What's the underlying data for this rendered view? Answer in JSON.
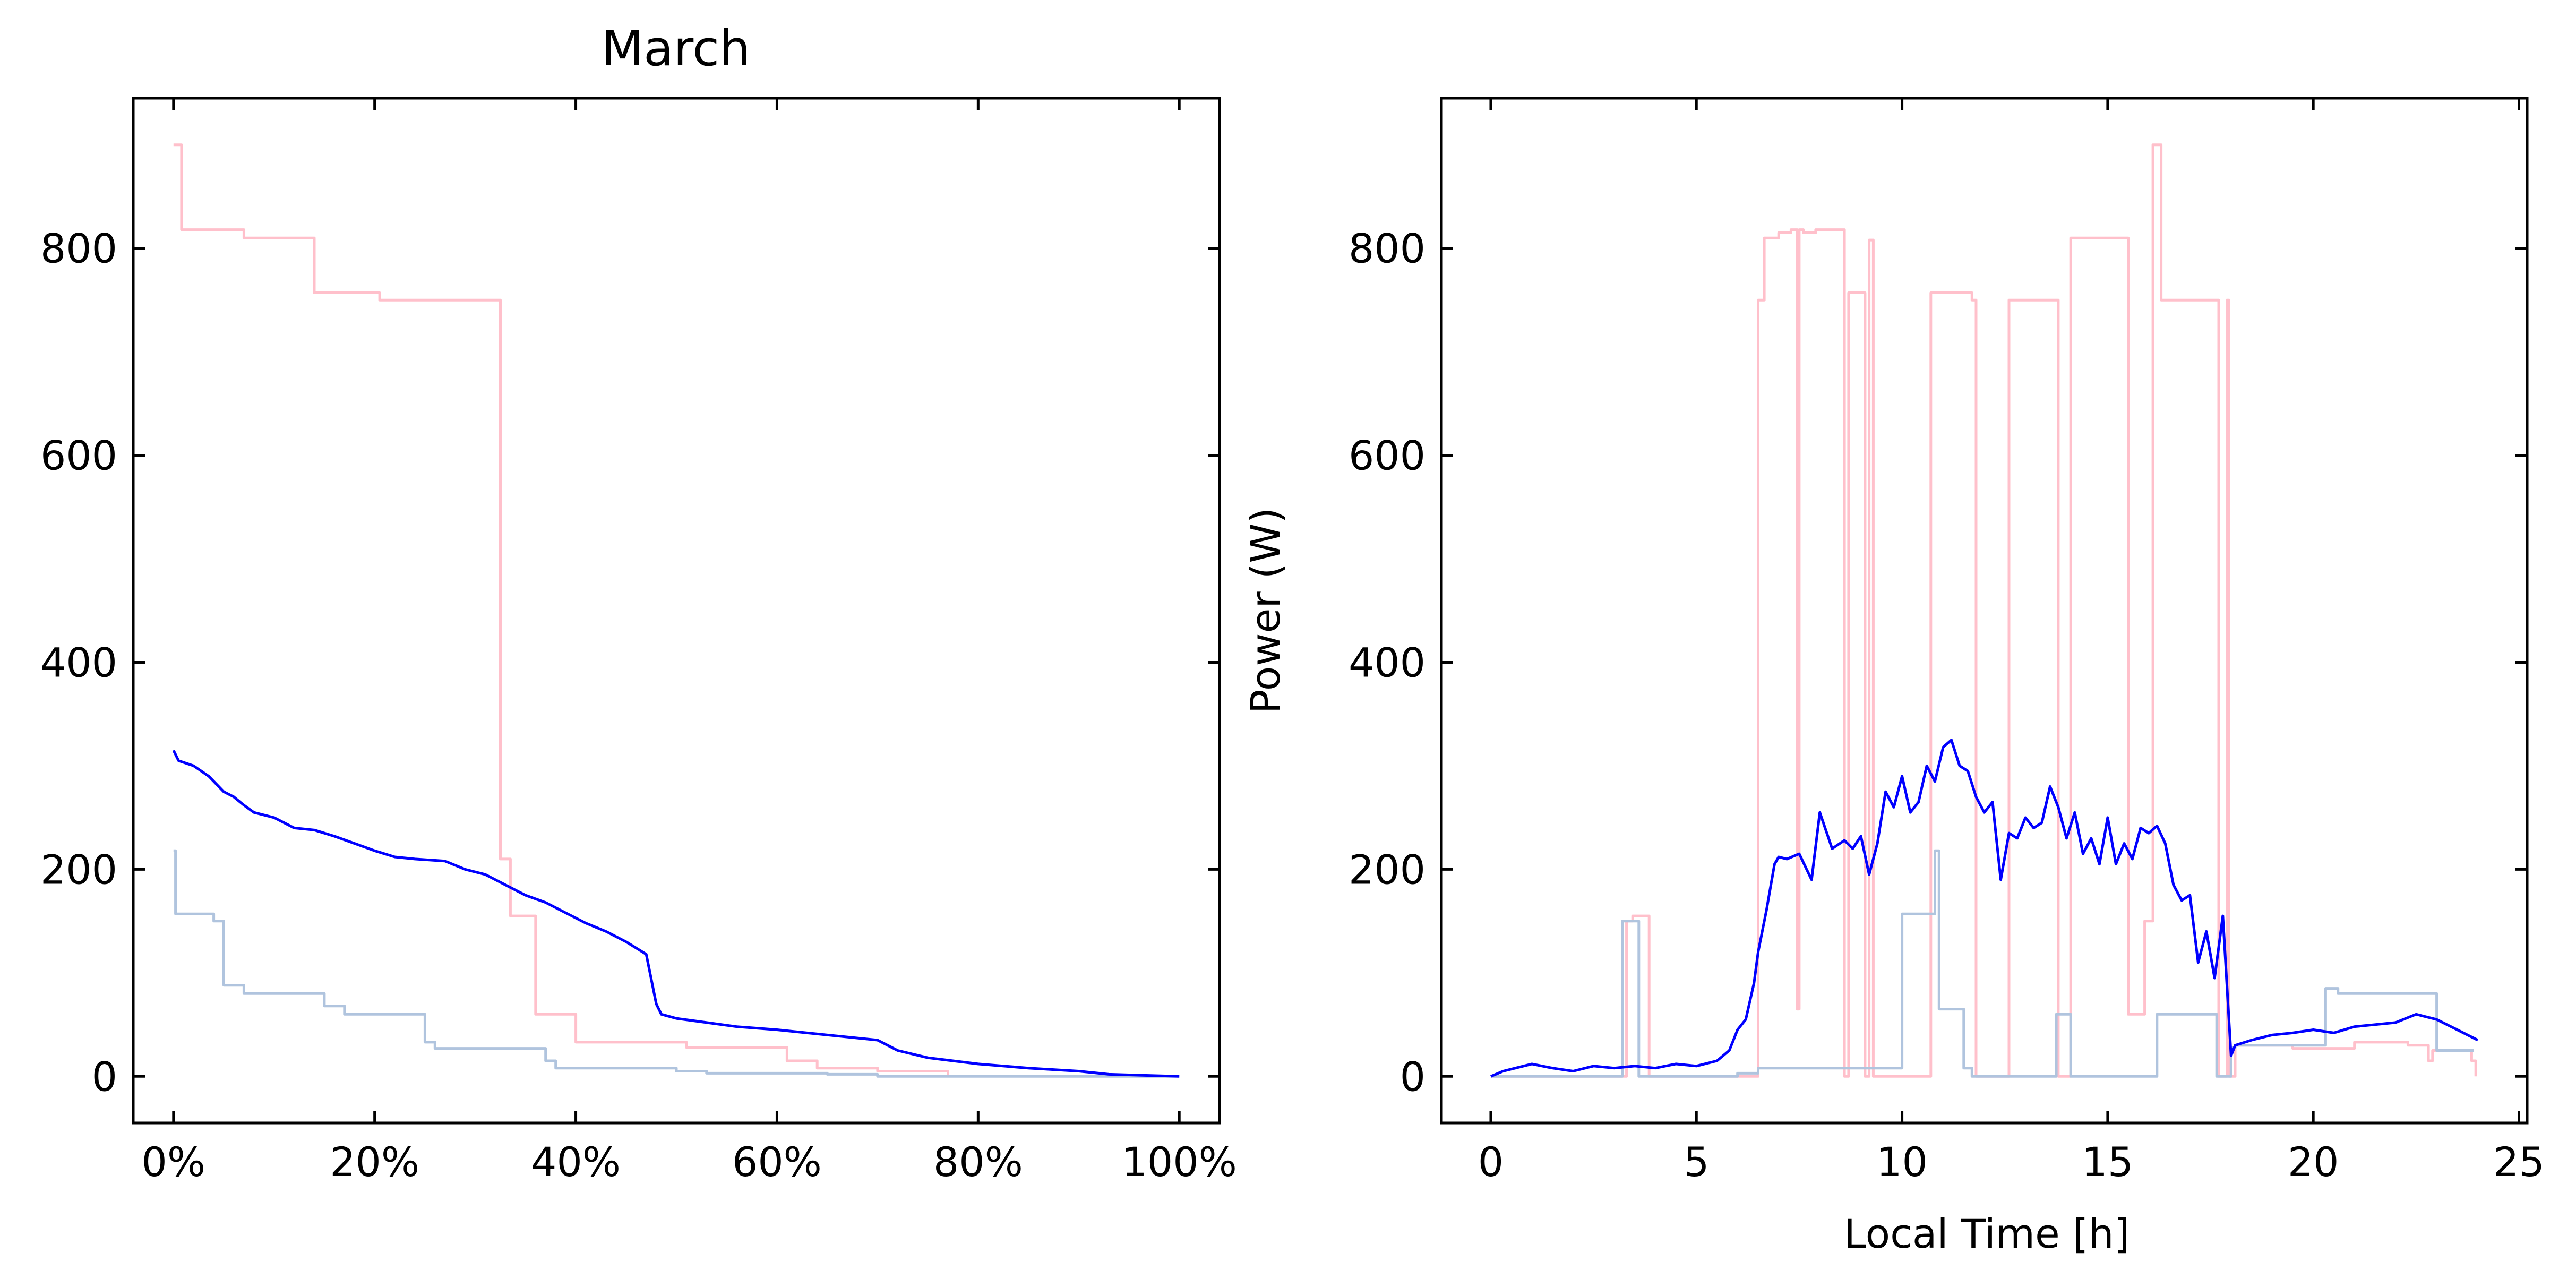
{
  "chart_data": [
    {
      "type": "line",
      "title": "March",
      "xlabel": "",
      "ylabel": "",
      "xlim": [
        -0.04,
        1.04
      ],
      "ylim": [
        -45,
        945
      ],
      "xticks": [
        0,
        0.2,
        0.4,
        0.6,
        0.8,
        1.0
      ],
      "xtick_labels": [
        "0%",
        "20%",
        "40%",
        "60%",
        "80%",
        "100%"
      ],
      "yticks": [
        0,
        200,
        400,
        600,
        800
      ],
      "ytick_labels": [
        "0",
        "200",
        "400",
        "600",
        "800"
      ],
      "grid": false,
      "series": [
        {
          "color": "#ffc0cb",
          "step": true,
          "x": [
            0,
            0.003,
            0.008,
            0.07,
            0.14,
            0.205,
            0.325,
            0.335,
            0.36,
            0.4,
            0.51,
            0.61,
            0.64,
            0.7,
            0.77
          ],
          "y": [
            900,
            900,
            818,
            810,
            757,
            750,
            210,
            155,
            60,
            33,
            28,
            15,
            8,
            5,
            0
          ]
        },
        {
          "color": "#b0c4de",
          "step": true,
          "x": [
            0,
            0.002,
            0.04,
            0.05,
            0.07,
            0.15,
            0.17,
            0.25,
            0.26,
            0.37,
            0.38,
            0.5,
            0.53,
            0.65,
            0.7,
            1.0
          ],
          "y": [
            218,
            157,
            150,
            88,
            80,
            68,
            60,
            33,
            27,
            15,
            8,
            5,
            3,
            2,
            0,
            0
          ]
        },
        {
          "color": "#0000ff",
          "step": false,
          "x": [
            0,
            0.005,
            0.02,
            0.035,
            0.05,
            0.06,
            0.07,
            0.08,
            0.1,
            0.12,
            0.14,
            0.16,
            0.18,
            0.2,
            0.22,
            0.24,
            0.27,
            0.29,
            0.31,
            0.33,
            0.35,
            0.37,
            0.39,
            0.41,
            0.43,
            0.45,
            0.47,
            0.48,
            0.485,
            0.5,
            0.53,
            0.56,
            0.6,
            0.65,
            0.7,
            0.72,
            0.75,
            0.8,
            0.85,
            0.9,
            0.93,
            1.0
          ],
          "y": [
            315,
            305,
            300,
            290,
            275,
            270,
            262,
            255,
            250,
            240,
            238,
            232,
            225,
            218,
            212,
            210,
            208,
            200,
            195,
            185,
            175,
            168,
            158,
            148,
            140,
            130,
            118,
            70,
            60,
            56,
            52,
            48,
            45,
            40,
            35,
            25,
            18,
            12,
            8,
            5,
            2,
            0
          ]
        }
      ]
    },
    {
      "type": "line",
      "title": "",
      "xlabel": "Local Time [h]",
      "ylabel": "Power (W)",
      "xlim": [
        -1.2,
        25.2
      ],
      "ylim": [
        -45,
        945
      ],
      "xticks": [
        0,
        5,
        10,
        15,
        20,
        25
      ],
      "xtick_labels": [
        "0",
        "5",
        "10",
        "15",
        "20",
        "25"
      ],
      "yticks": [
        0,
        200,
        400,
        600,
        800
      ],
      "ytick_labels": [
        "0",
        "200",
        "400",
        "600",
        "800"
      ],
      "grid": false,
      "series": [
        {
          "color": "#ffc0cb",
          "step": true,
          "x": [
            0,
            3.2,
            3.3,
            3.45,
            3.85,
            4.5,
            5.5,
            6.3,
            6.5,
            6.65,
            7.0,
            7.3,
            7.45,
            7.5,
            7.6,
            7.9,
            8.6,
            8.7,
            9.0,
            9.1,
            9.2,
            9.3,
            9.6,
            10.3,
            10.6,
            10.7,
            11.7,
            11.8,
            12.0,
            12.45,
            12.6,
            13.7,
            13.8,
            14.1,
            15.35,
            15.5,
            15.9,
            16.1,
            16.3,
            17.6,
            17.7,
            17.9,
            17.95,
            18.1,
            19.5,
            21.0,
            22.3,
            22.8,
            22.9,
            23.6,
            23.85,
            23.95
          ],
          "y": [
            0,
            0,
            150,
            155,
            0,
            0,
            0,
            0,
            750,
            810,
            815,
            818,
            65,
            818,
            815,
            818,
            0,
            757,
            757,
            0,
            808,
            0,
            0,
            0,
            0,
            757,
            750,
            0,
            0,
            0,
            750,
            750,
            0,
            810,
            810,
            60,
            150,
            900,
            750,
            750,
            0,
            750,
            0,
            30,
            27,
            33,
            30,
            15,
            25,
            25,
            15,
            0
          ]
        },
        {
          "color": "#b0c4de",
          "step": true,
          "x": [
            0,
            3.1,
            3.2,
            3.6,
            6.0,
            6.5,
            9.5,
            10.0,
            10.8,
            10.9,
            11.3,
            11.5,
            11.7,
            11.9,
            13.4,
            13.75,
            14.1,
            16.2,
            17.65,
            17.75,
            18.0,
            18.1,
            20.3,
            20.6,
            21.2,
            23.0,
            23.9
          ],
          "y": [
            0,
            0,
            150,
            0,
            3,
            8,
            8,
            157,
            218,
            65,
            65,
            8,
            0,
            0,
            0,
            60,
            0,
            60,
            0,
            0,
            28,
            30,
            85,
            80,
            80,
            25,
            25
          ]
        },
        {
          "color": "#0000ff",
          "step": false,
          "x": [
            0,
            0.3,
            0.6,
            1.0,
            1.5,
            2.0,
            2.5,
            3.0,
            3.5,
            4.0,
            4.5,
            5.0,
            5.5,
            5.8,
            6.0,
            6.2,
            6.4,
            6.5,
            6.7,
            6.9,
            7.0,
            7.2,
            7.5,
            7.8,
            8.0,
            8.3,
            8.6,
            8.8,
            9.0,
            9.2,
            9.4,
            9.6,
            9.8,
            10.0,
            10.2,
            10.4,
            10.6,
            10.8,
            11.0,
            11.2,
            11.4,
            11.6,
            11.8,
            12.0,
            12.2,
            12.4,
            12.6,
            12.8,
            13.0,
            13.2,
            13.4,
            13.6,
            13.8,
            14.0,
            14.2,
            14.4,
            14.6,
            14.8,
            15.0,
            15.2,
            15.4,
            15.6,
            15.8,
            16.0,
            16.2,
            16.4,
            16.6,
            16.8,
            17.0,
            17.2,
            17.4,
            17.6,
            17.8,
            18.0,
            18.1,
            18.5,
            19.0,
            19.5,
            20.0,
            20.5,
            21.0,
            21.5,
            22.0,
            22.5,
            23.0,
            23.5,
            24.0
          ],
          "y": [
            0,
            5,
            8,
            12,
            8,
            5,
            10,
            8,
            10,
            8,
            12,
            10,
            15,
            25,
            45,
            55,
            90,
            120,
            160,
            205,
            212,
            210,
            215,
            190,
            255,
            220,
            228,
            220,
            232,
            195,
            225,
            275,
            260,
            290,
            255,
            265,
            300,
            285,
            318,
            325,
            300,
            295,
            270,
            255,
            265,
            190,
            235,
            230,
            250,
            240,
            245,
            280,
            260,
            230,
            255,
            215,
            230,
            205,
            250,
            205,
            225,
            210,
            240,
            235,
            242,
            225,
            185,
            170,
            175,
            110,
            140,
            95,
            155,
            20,
            30,
            35,
            40,
            42,
            45,
            42,
            48,
            50,
            52,
            60,
            55,
            45,
            35
          ]
        }
      ]
    }
  ]
}
